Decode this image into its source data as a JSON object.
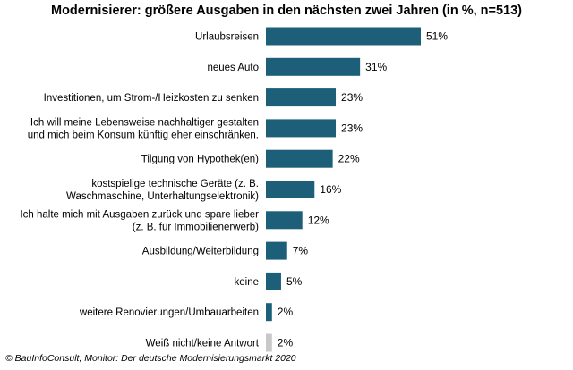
{
  "chart_data": {
    "type": "bar",
    "orientation": "horizontal",
    "title": "Modernisierer:  größere Ausgaben in den nächsten zwei Jahren (in %, n=513)",
    "categories": [
      [
        "Urlaubsreisen"
      ],
      [
        "neues Auto"
      ],
      [
        "Investitionen, um Strom-/Heizkosten zu senken"
      ],
      [
        "Ich will meine Lebensweise nachhaltiger gestalten",
        "und mich beim Konsum künftig eher einschränken."
      ],
      [
        "Tilgung von Hypothek(en)"
      ],
      [
        "kostspielige technische Geräte (z. B.",
        "Waschmaschine, Unterhaltungselektronik)"
      ],
      [
        "Ich halte mich mit Ausgaben zurück und spare lieber",
        "(z. B. für Immobilienerwerb)"
      ],
      [
        "Ausbildung/Weiterbildung"
      ],
      [
        "keine"
      ],
      [
        "weitere Renovierungen/Umbauarbeiten"
      ],
      [
        "Weiß nicht/keine Antwort"
      ]
    ],
    "values": [
      51,
      31,
      23,
      23,
      22,
      16,
      12,
      7,
      5,
      2,
      2
    ],
    "value_labels": [
      "51%",
      "31%",
      "23%",
      "23%",
      "22%",
      "16%",
      "12%",
      "7%",
      "5%",
      "2%",
      "2%"
    ],
    "bar_colors": [
      "#1d5f79",
      "#1d5f79",
      "#1d5f79",
      "#1d5f79",
      "#1d5f79",
      "#1d5f79",
      "#1d5f79",
      "#1d5f79",
      "#1d5f79",
      "#1d5f79",
      "#c8c8c8"
    ],
    "xlim": [
      0,
      51
    ],
    "grid": false,
    "legend": "none",
    "source": "© BauInfoConsult, Monitor: Der deutsche Modernisierungsmarkt 2020"
  }
}
